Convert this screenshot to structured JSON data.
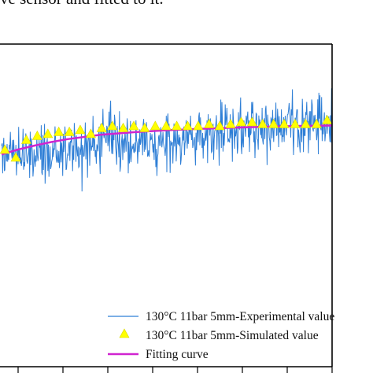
{
  "caption": "ve sensor and fitted to it.",
  "chart_data": {
    "type": "line",
    "title": "",
    "xlabel": "",
    "ylabel": "",
    "x_range": [
      0,
      100
    ],
    "y_range": [
      0,
      100
    ],
    "grid": false,
    "legend_position": "bottom-right",
    "series": [
      {
        "name": "130°C 11bar  5mm-Experimental value",
        "kind": "line",
        "color": "#2f7fd6",
        "trend": {
          "x": [
            0,
            100
          ],
          "y": [
            50,
            68
          ]
        },
        "noise_amplitude": 12,
        "points": 600
      },
      {
        "name": "130°C 11bar  5mm-Simulated value",
        "kind": "scatter",
        "marker": "triangle",
        "color": "#ffff00",
        "x": [
          1,
          4.3,
          7.5,
          10.8,
          14,
          17.3,
          20.5,
          23.8,
          27,
          30.3,
          33.5,
          36.8,
          40,
          43.3,
          46.5,
          49.8,
          53,
          56.3,
          59.5,
          62.8,
          66,
          69.3,
          72.5,
          75.8,
          79,
          82.3,
          85.5,
          88.8,
          92,
          95.3,
          98.5
        ],
        "y": [
          54,
          50,
          59,
          61,
          62,
          63,
          63,
          64,
          62,
          65,
          66,
          65,
          66,
          65,
          66,
          66,
          66,
          66,
          66,
          67,
          66,
          67,
          68,
          68,
          67,
          67,
          67,
          67,
          67,
          67,
          69
        ]
      },
      {
        "name": "Fitting curve",
        "kind": "line",
        "color": "#d024d0",
        "x": [
          0,
          5,
          10,
          15,
          20,
          30,
          40,
          50,
          60,
          70,
          80,
          90,
          100
        ],
        "y": [
          51.5,
          54.0,
          56.0,
          57.8,
          59.3,
          61.5,
          62.8,
          63.8,
          64.5,
          65.1,
          65.6,
          66.0,
          66.2
        ]
      }
    ],
    "colors": {
      "axis": "#000000",
      "experimental": "#2f7fd6",
      "simulated": "#ffff00",
      "fit": "#d024d0"
    }
  }
}
